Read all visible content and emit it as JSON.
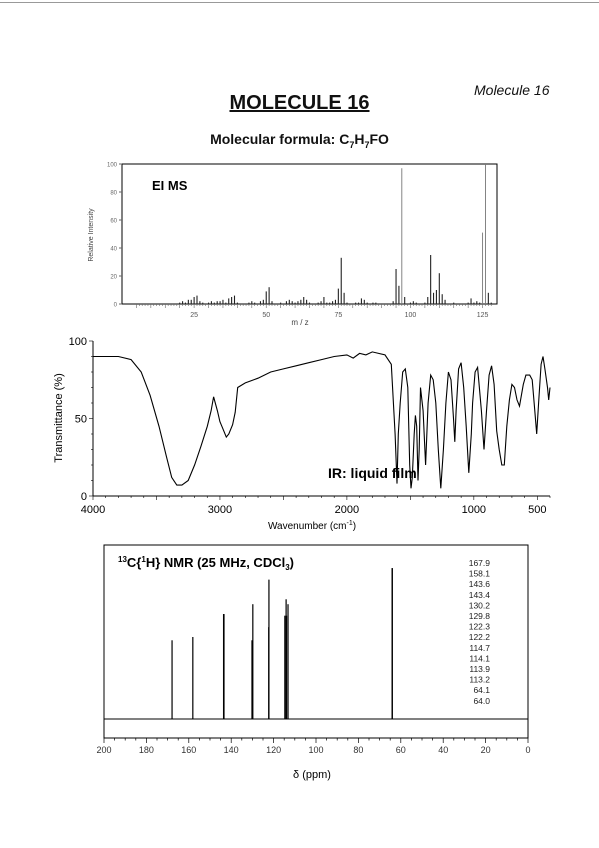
{
  "page": {
    "tag": "Molecule 16",
    "title": "MOLECULE 16",
    "formula": {
      "label": "Molecular formula: ",
      "C": "C",
      "Cn": "7",
      "H": "H",
      "Hn": "7",
      "rest": "FO"
    }
  },
  "ms": {
    "label": "EI MS",
    "ylabel": "Relative Intensity",
    "xlabel": "m / z",
    "xlim": [
      0,
      130
    ],
    "ylim": [
      0,
      100
    ],
    "xticks": [
      25,
      50,
      75,
      100,
      125
    ],
    "yticks": [
      0,
      20,
      40,
      60,
      80,
      100
    ],
    "peaks": [
      [
        20,
        1
      ],
      [
        21,
        2
      ],
      [
        22,
        1
      ],
      [
        23,
        3
      ],
      [
        24,
        3
      ],
      [
        25,
        5
      ],
      [
        26,
        6
      ],
      [
        27,
        2
      ],
      [
        28,
        1
      ],
      [
        30,
        1
      ],
      [
        31,
        2
      ],
      [
        32,
        1
      ],
      [
        33,
        2
      ],
      [
        34,
        2
      ],
      [
        35,
        3
      ],
      [
        36,
        1
      ],
      [
        37,
        4
      ],
      [
        38,
        5
      ],
      [
        39,
        6
      ],
      [
        40,
        1
      ],
      [
        44,
        1
      ],
      [
        45,
        2
      ],
      [
        46,
        1
      ],
      [
        48,
        2
      ],
      [
        49,
        3
      ],
      [
        50,
        9
      ],
      [
        51,
        12
      ],
      [
        52,
        2
      ],
      [
        55,
        1
      ],
      [
        57,
        2
      ],
      [
        58,
        3
      ],
      [
        59,
        2
      ],
      [
        60,
        1
      ],
      [
        61,
        2
      ],
      [
        62,
        3
      ],
      [
        63,
        5
      ],
      [
        64,
        3
      ],
      [
        65,
        1
      ],
      [
        68,
        1
      ],
      [
        69,
        2
      ],
      [
        70,
        5
      ],
      [
        71,
        1
      ],
      [
        72,
        1
      ],
      [
        73,
        2
      ],
      [
        74,
        3
      ],
      [
        75,
        11
      ],
      [
        76,
        33
      ],
      [
        77,
        8
      ],
      [
        78,
        1
      ],
      [
        81,
        1
      ],
      [
        82,
        1
      ],
      [
        83,
        4
      ],
      [
        84,
        3
      ],
      [
        85,
        1
      ],
      [
        87,
        1
      ],
      [
        88,
        1
      ],
      [
        94,
        2
      ],
      [
        95,
        25
      ],
      [
        96,
        13
      ],
      [
        97,
        97
      ],
      [
        98,
        5
      ],
      [
        100,
        1
      ],
      [
        101,
        2
      ],
      [
        102,
        1
      ],
      [
        105,
        1
      ],
      [
        106,
        5
      ],
      [
        107,
        35
      ],
      [
        108,
        8
      ],
      [
        109,
        10
      ],
      [
        110,
        22
      ],
      [
        111,
        7
      ],
      [
        112,
        3
      ],
      [
        115,
        1
      ],
      [
        120,
        1
      ],
      [
        121,
        4
      ],
      [
        122,
        1
      ],
      [
        123,
        2
      ],
      [
        124,
        1
      ],
      [
        125,
        51
      ],
      [
        126,
        100
      ],
      [
        127,
        8
      ],
      [
        128,
        1
      ]
    ]
  },
  "ir": {
    "label": "IR: liquid film",
    "ylabel": "Transmittance (%)",
    "xlabel_main": "Wavenumber (cm",
    "xlabel_sup": "-1",
    "xlabel_end": ")",
    "xlim": [
      4000,
      400
    ],
    "ylim": [
      0,
      100
    ],
    "xticks": [
      4000,
      3000,
      2000,
      1000,
      500
    ],
    "yticks": [
      0,
      50,
      100
    ],
    "points": [
      [
        4000,
        90
      ],
      [
        3800,
        90
      ],
      [
        3700,
        88
      ],
      [
        3620,
        80
      ],
      [
        3550,
        65
      ],
      [
        3480,
        45
      ],
      [
        3420,
        25
      ],
      [
        3380,
        12
      ],
      [
        3340,
        7
      ],
      [
        3300,
        7
      ],
      [
        3250,
        10
      ],
      [
        3200,
        20
      ],
      [
        3150,
        32
      ],
      [
        3100,
        45
      ],
      [
        3070,
        55
      ],
      [
        3050,
        64
      ],
      [
        3020,
        55
      ],
      [
        3000,
        48
      ],
      [
        2980,
        44
      ],
      [
        2950,
        38
      ],
      [
        2930,
        40
      ],
      [
        2900,
        46
      ],
      [
        2880,
        54
      ],
      [
        2860,
        70
      ],
      [
        2800,
        73
      ],
      [
        2700,
        76
      ],
      [
        2600,
        80
      ],
      [
        2500,
        82
      ],
      [
        2400,
        84
      ],
      [
        2300,
        86
      ],
      [
        2200,
        88
      ],
      [
        2100,
        90
      ],
      [
        2000,
        91
      ],
      [
        1950,
        89
      ],
      [
        1900,
        92
      ],
      [
        1850,
        91
      ],
      [
        1800,
        93
      ],
      [
        1750,
        92
      ],
      [
        1700,
        91
      ],
      [
        1650,
        85
      ],
      [
        1620,
        40
      ],
      [
        1605,
        8
      ],
      [
        1595,
        40
      ],
      [
        1580,
        60
      ],
      [
        1560,
        80
      ],
      [
        1540,
        82
      ],
      [
        1520,
        70
      ],
      [
        1505,
        20
      ],
      [
        1495,
        5
      ],
      [
        1485,
        12
      ],
      [
        1470,
        40
      ],
      [
        1460,
        52
      ],
      [
        1450,
        45
      ],
      [
        1440,
        10
      ],
      [
        1430,
        30
      ],
      [
        1420,
        70
      ],
      [
        1400,
        55
      ],
      [
        1380,
        20
      ],
      [
        1360,
        60
      ],
      [
        1340,
        78
      ],
      [
        1320,
        75
      ],
      [
        1300,
        60
      ],
      [
        1280,
        30
      ],
      [
        1260,
        5
      ],
      [
        1240,
        30
      ],
      [
        1220,
        60
      ],
      [
        1200,
        80
      ],
      [
        1180,
        75
      ],
      [
        1160,
        50
      ],
      [
        1150,
        35
      ],
      [
        1140,
        55
      ],
      [
        1120,
        82
      ],
      [
        1100,
        86
      ],
      [
        1080,
        70
      ],
      [
        1060,
        45
      ],
      [
        1040,
        15
      ],
      [
        1020,
        40
      ],
      [
        1010,
        60
      ],
      [
        990,
        80
      ],
      [
        970,
        83
      ],
      [
        940,
        55
      ],
      [
        920,
        30
      ],
      [
        900,
        55
      ],
      [
        880,
        78
      ],
      [
        860,
        84
      ],
      [
        840,
        72
      ],
      [
        820,
        42
      ],
      [
        800,
        30
      ],
      [
        780,
        20
      ],
      [
        760,
        20
      ],
      [
        740,
        45
      ],
      [
        720,
        62
      ],
      [
        700,
        72
      ],
      [
        680,
        70
      ],
      [
        660,
        62
      ],
      [
        640,
        58
      ],
      [
        610,
        72
      ],
      [
        590,
        78
      ],
      [
        560,
        78
      ],
      [
        540,
        75
      ],
      [
        520,
        55
      ],
      [
        505,
        40
      ],
      [
        490,
        60
      ],
      [
        470,
        85
      ],
      [
        455,
        90
      ],
      [
        440,
        82
      ],
      [
        420,
        70
      ],
      [
        410,
        62
      ],
      [
        400,
        70
      ]
    ]
  },
  "nmr": {
    "label_pre": "13",
    "label_main1": "C{",
    "label_sup2": "1",
    "label_main2": "H} NMR  (25 MHz, CDCl",
    "label_sub": "3",
    "label_end": ")",
    "xlabel": "δ (ppm)",
    "xlim": [
      200,
      0
    ],
    "xticks": [
      200,
      180,
      160,
      140,
      120,
      100,
      80,
      60,
      40,
      20,
      0
    ],
    "shift_list": [
      "167.9",
      "158.1",
      "143.6",
      "143.4",
      "130.2",
      "129.8",
      "122.3",
      "122.2",
      "114.7",
      "114.1",
      "113.9",
      "113.2",
      "64.1",
      "64.0"
    ],
    "peaks": [
      [
        167.9,
        0.48
      ],
      [
        158.1,
        0.5
      ],
      [
        143.6,
        0.64
      ],
      [
        143.4,
        0.64
      ],
      [
        130.2,
        0.48
      ],
      [
        129.8,
        0.7
      ],
      [
        122.3,
        0.56
      ],
      [
        122.2,
        0.85
      ],
      [
        114.7,
        0.63
      ],
      [
        114.1,
        0.73
      ],
      [
        113.9,
        0.63
      ],
      [
        113.2,
        0.7
      ],
      [
        64.1,
        0.92
      ],
      [
        64.0,
        0.92
      ]
    ]
  }
}
